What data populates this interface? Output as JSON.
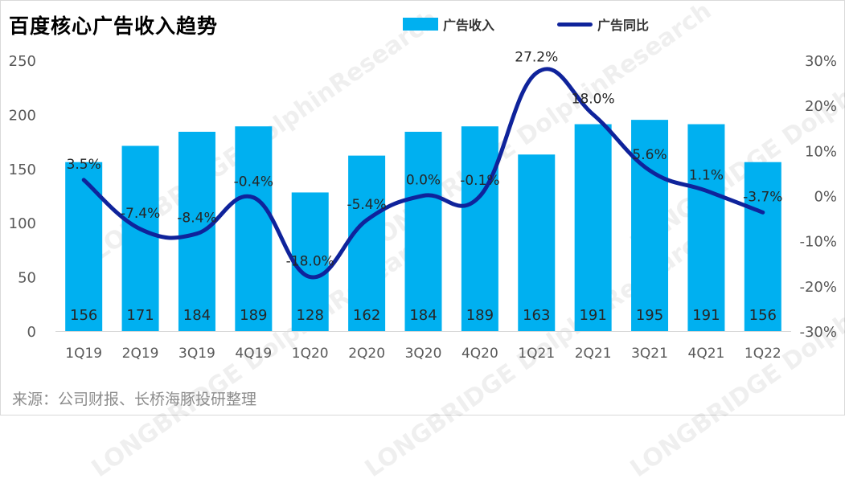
{
  "title": "百度核心广告收入趋势",
  "source": "来源：公司财报、长桥海豚投研整理",
  "watermark": "LONGBRIDGE DolphinResearch",
  "colors": {
    "bar": "#00b0f0",
    "line": "#0f239b",
    "axis_text": "#595959",
    "grid": "#d9d9d9"
  },
  "chart_data": {
    "type": "bar",
    "title": "百度核心广告收入趋势",
    "categories": [
      "1Q19",
      "2Q19",
      "3Q19",
      "4Q19",
      "1Q20",
      "2Q20",
      "3Q20",
      "4Q20",
      "1Q21",
      "2Q21",
      "3Q21",
      "4Q21",
      "1Q22"
    ],
    "series": [
      {
        "name": "广告收入",
        "type": "bar",
        "axis": "left",
        "values": [
          156,
          171,
          184,
          189,
          128,
          162,
          184,
          189,
          163,
          191,
          195,
          191,
          156
        ],
        "labels": [
          "156",
          "171",
          "184",
          "189",
          "128",
          "162",
          "184",
          "189",
          "163",
          "191",
          "195",
          "191",
          "156"
        ]
      },
      {
        "name": "广告同比",
        "type": "line",
        "axis": "right",
        "values": [
          3.5,
          -7.4,
          -8.4,
          -0.4,
          -18.0,
          -5.4,
          0.0,
          -0.1,
          27.2,
          18.0,
          5.6,
          1.1,
          -3.7
        ],
        "labels": [
          "3.5%",
          "-7.4%",
          "-8.4%",
          "-0.4%",
          "-18.0%",
          "-5.4%",
          "0.0%",
          "-0.1%",
          "27.2%",
          "18.0%",
          "5.6%",
          "1.1%",
          "-3.7%"
        ]
      }
    ],
    "y_left": {
      "min": 0,
      "max": 250,
      "ticks": [
        "0",
        "50",
        "100",
        "150",
        "200",
        "250"
      ]
    },
    "y_right": {
      "min": -30,
      "max": 30,
      "ticks": [
        "-30%",
        "-20%",
        "-10%",
        "0%",
        "10%",
        "20%",
        "30%"
      ]
    },
    "grid": false,
    "legend": "top"
  }
}
